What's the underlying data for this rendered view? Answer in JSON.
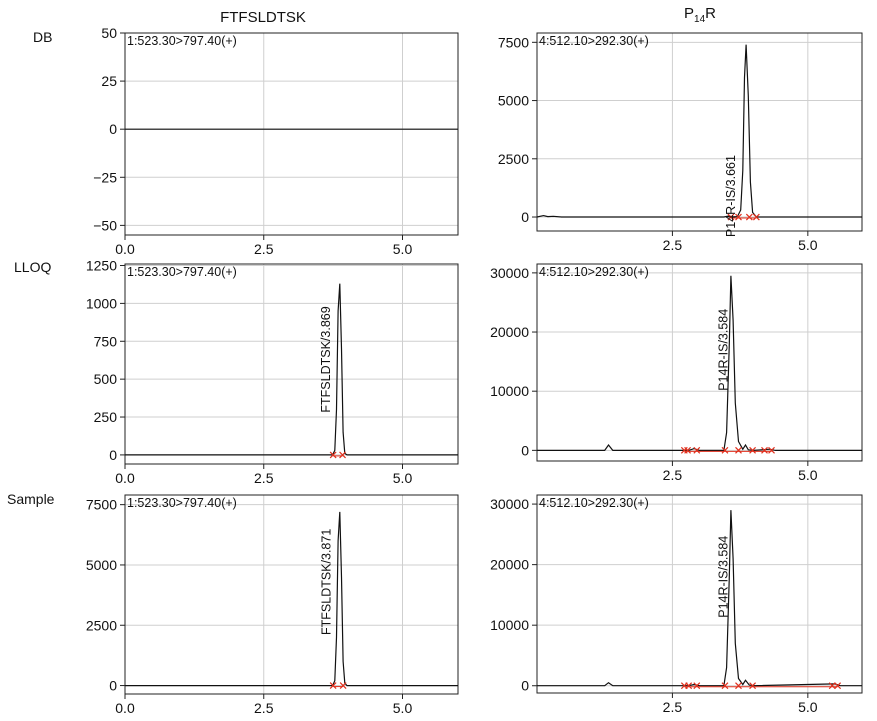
{
  "column_titles": [
    "FTFSLDTSK",
    "P",
    "14",
    "R"
  ],
  "row_labels": [
    "DB",
    "LLOQ",
    "Sample"
  ],
  "chart_data": [
    {
      "type": "line",
      "row": "DB",
      "column": "FTFSLDTSK",
      "channel_label": "1:523.30>797.40(+)",
      "xlim": [
        0,
        6
      ],
      "ylim": [
        -55,
        50
      ],
      "xticks": [
        0.0,
        2.5,
        5.0
      ],
      "xtick_labels": [
        "0.0",
        "2.5",
        "5.0"
      ],
      "yticks": [
        50,
        25,
        0,
        -25,
        -50
      ],
      "ytick_labels": [
        "50",
        "25",
        "0",
        "−25",
        "−50"
      ],
      "grid": true,
      "trace": [
        [
          0,
          0
        ],
        [
          6,
          0
        ]
      ],
      "peak_label": null,
      "markers": []
    },
    {
      "type": "line",
      "row": "DB",
      "column": "P14R",
      "channel_label": "4:512.10>292.30(+)",
      "xlim": [
        0,
        6
      ],
      "ylim": [
        -600,
        7900
      ],
      "xticks": [
        2.5,
        5.0
      ],
      "xtick_labels": [
        "2.5",
        "5.0"
      ],
      "yticks": [
        7500,
        5000,
        2500,
        0
      ],
      "ytick_labels": [
        "7500",
        "5000",
        "2500",
        "0"
      ],
      "grid": true,
      "trace": [
        [
          0,
          0
        ],
        [
          0.12,
          60
        ],
        [
          0.2,
          20
        ],
        [
          0.3,
          30
        ],
        [
          0.45,
          0
        ],
        [
          3.45,
          0
        ],
        [
          3.55,
          50
        ],
        [
          3.6,
          0
        ],
        [
          3.7,
          20
        ],
        [
          3.76,
          300
        ],
        [
          3.8,
          2000
        ],
        [
          3.83,
          6000
        ],
        [
          3.86,
          7400
        ],
        [
          3.9,
          5200
        ],
        [
          3.94,
          1500
        ],
        [
          3.98,
          200
        ],
        [
          4.05,
          0
        ],
        [
          6,
          0
        ]
      ],
      "peak_label": {
        "text": "P14R-IS/3.661",
        "x": 3.66,
        "y": 900
      },
      "markers": [
        3.58,
        3.72,
        3.92,
        4.05
      ]
    },
    {
      "type": "line",
      "row": "LLOQ",
      "column": "FTFSLDTSK",
      "channel_label": "1:523.30>797.40(+)",
      "xlim": [
        0,
        6
      ],
      "ylim": [
        -60,
        1260
      ],
      "xticks": [
        0.0,
        2.5,
        5.0
      ],
      "xtick_labels": [
        "0.0",
        "2.5",
        "5.0"
      ],
      "yticks": [
        1250,
        1000,
        750,
        500,
        250,
        0
      ],
      "ytick_labels": [
        "1250",
        "1000",
        "750",
        "500",
        "250",
        "0"
      ],
      "grid": true,
      "trace": [
        [
          0,
          0
        ],
        [
          3.74,
          0
        ],
        [
          3.78,
          30
        ],
        [
          3.81,
          300
        ],
        [
          3.84,
          950
        ],
        [
          3.87,
          1130
        ],
        [
          3.9,
          700
        ],
        [
          3.93,
          150
        ],
        [
          3.96,
          10
        ],
        [
          4.0,
          0
        ],
        [
          6,
          0
        ]
      ],
      "peak_label": {
        "text": "FTFSLDTSK/3.869",
        "x": 3.69,
        "y": 630
      },
      "markers": [
        3.75,
        3.92
      ]
    },
    {
      "type": "line",
      "row": "LLOQ",
      "column": "P14R",
      "channel_label": "4:512.10>292.30(+)",
      "xlim": [
        0,
        6
      ],
      "ylim": [
        -1800,
        31500
      ],
      "xticks": [
        2.5,
        5.0
      ],
      "xtick_labels": [
        "2.5",
        "5.0"
      ],
      "yticks": [
        30000,
        20000,
        10000,
        0
      ],
      "ytick_labels": [
        "30000",
        "20000",
        "10000",
        "0"
      ],
      "grid": true,
      "trace": [
        [
          0,
          0
        ],
        [
          1.25,
          0
        ],
        [
          1.32,
          900
        ],
        [
          1.4,
          0
        ],
        [
          2.8,
          0
        ],
        [
          2.9,
          300
        ],
        [
          3.0,
          0
        ],
        [
          3.45,
          0
        ],
        [
          3.5,
          3000
        ],
        [
          3.55,
          18000
        ],
        [
          3.58,
          29500
        ],
        [
          3.62,
          22000
        ],
        [
          3.66,
          8000
        ],
        [
          3.72,
          1500
        ],
        [
          3.8,
          200
        ],
        [
          3.85,
          900
        ],
        [
          3.9,
          100
        ],
        [
          4.0,
          0
        ],
        [
          4.3,
          200
        ],
        [
          4.4,
          0
        ],
        [
          6,
          0
        ]
      ],
      "peak_label": {
        "text": "P14R-IS/3.584",
        "x": 3.52,
        "y": 17000
      },
      "markers": [
        2.72,
        2.78,
        2.95,
        3.47,
        3.72,
        3.98,
        4.2,
        4.33
      ]
    },
    {
      "type": "line",
      "row": "Sample",
      "column": "FTFSLDTSK",
      "channel_label": "1:523.30>797.40(+)",
      "xlim": [
        0,
        6
      ],
      "ylim": [
        -350,
        7900
      ],
      "xticks": [
        0.0,
        2.5,
        5.0
      ],
      "xtick_labels": [
        "0.0",
        "2.5",
        "5.0"
      ],
      "yticks": [
        7500,
        5000,
        2500,
        0
      ],
      "ytick_labels": [
        "7500",
        "5000",
        "2500",
        "0"
      ],
      "grid": true,
      "trace": [
        [
          0,
          0
        ],
        [
          3.74,
          0
        ],
        [
          3.78,
          200
        ],
        [
          3.81,
          2000
        ],
        [
          3.84,
          6000
        ],
        [
          3.87,
          7200
        ],
        [
          3.9,
          4500
        ],
        [
          3.93,
          1000
        ],
        [
          3.96,
          100
        ],
        [
          4.0,
          0
        ],
        [
          6,
          0
        ]
      ],
      "peak_label": {
        "text": "FTFSLDTSK/3.871",
        "x": 3.7,
        "y": 4300
      },
      "markers": [
        3.75,
        3.93
      ]
    },
    {
      "type": "line",
      "row": "Sample",
      "column": "P14R",
      "channel_label": "4:512.10>292.30(+)",
      "xlim": [
        0,
        6
      ],
      "ylim": [
        -1200,
        31500
      ],
      "xticks": [
        2.5,
        5.0
      ],
      "xtick_labels": [
        "2.5",
        "5.0"
      ],
      "yticks": [
        30000,
        20000,
        10000,
        0
      ],
      "ytick_labels": [
        "30000",
        "20000",
        "10000",
        "0"
      ],
      "grid": true,
      "trace": [
        [
          0,
          0
        ],
        [
          1.25,
          0
        ],
        [
          1.32,
          500
        ],
        [
          1.4,
          0
        ],
        [
          2.8,
          0
        ],
        [
          2.9,
          200
        ],
        [
          3.0,
          0
        ],
        [
          3.45,
          0
        ],
        [
          3.5,
          3000
        ],
        [
          3.55,
          18000
        ],
        [
          3.58,
          29000
        ],
        [
          3.62,
          21000
        ],
        [
          3.66,
          7000
        ],
        [
          3.72,
          1200
        ],
        [
          3.8,
          200
        ],
        [
          3.85,
          900
        ],
        [
          3.92,
          100
        ],
        [
          4.0,
          0
        ],
        [
          5.5,
          300
        ],
        [
          5.6,
          0
        ],
        [
          6,
          0
        ]
      ],
      "peak_label": {
        "text": "P14R-IS/3.584",
        "x": 3.52,
        "y": 18000
      },
      "markers": [
        2.72,
        2.8,
        2.95,
        3.47,
        3.72,
        3.98,
        5.45,
        5.55
      ]
    }
  ],
  "colors": {
    "trace": "#111111",
    "marker": "#e0301e",
    "grid": "#cfcfcf",
    "frame": "#222222"
  }
}
